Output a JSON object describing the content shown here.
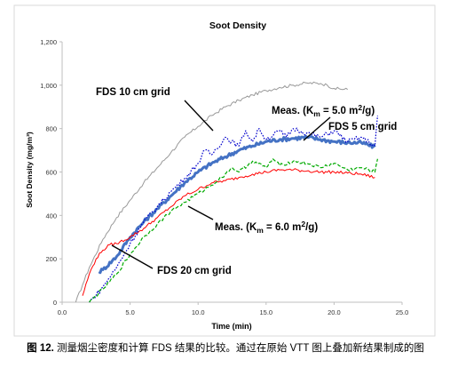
{
  "chart_data": {
    "type": "line",
    "title": "Soot Density",
    "xlabel": "Time (min)",
    "ylabel": "Soot Density (mg/m³)",
    "xlim": [
      0,
      25
    ],
    "ylim": [
      0,
      1200
    ],
    "x_ticks": [
      0,
      5,
      10,
      15,
      20,
      25
    ],
    "x_tick_labels": [
      "0.0",
      "5.0",
      "10.0",
      "15.0",
      "20.0",
      "25.0"
    ],
    "y_ticks": [
      0,
      200,
      400,
      600,
      800,
      1000,
      1200
    ],
    "y_tick_labels": [
      "0",
      "200",
      "400",
      "600",
      "800",
      "1,000",
      "1,200"
    ],
    "grid": false,
    "series": [
      {
        "name": "FDS 10 cm grid",
        "color": "#999999",
        "style": "solid-thin-noisy",
        "x": [
          1.0,
          1.5,
          2.0,
          3.0,
          4.0,
          5.0,
          6.0,
          7.0,
          8.0,
          9.0,
          10.0,
          11.0,
          12.0,
          13.0,
          14.0,
          15.0,
          16.0,
          17.0,
          18.0,
          19.0,
          19.5,
          20.0,
          21.0
        ],
        "y": [
          0,
          80,
          160,
          290,
          390,
          470,
          550,
          620,
          690,
          760,
          810,
          860,
          900,
          930,
          955,
          975,
          990,
          1000,
          1010,
          1008,
          1000,
          985,
          980
        ]
      },
      {
        "name": "FDS 5 cm grid",
        "color": "#4472c4",
        "style": "solid-thick",
        "x": [
          2.7,
          3.0,
          4.0,
          5.0,
          6.0,
          7.0,
          8.0,
          9.0,
          10.0,
          11.0,
          12.0,
          13.0,
          14.0,
          15.0,
          16.0,
          17.0,
          18.0,
          19.0,
          20.0,
          21.0,
          22.0,
          23.0
        ],
        "y": [
          140,
          150,
          210,
          300,
          370,
          430,
          490,
          550,
          600,
          640,
          670,
          700,
          720,
          740,
          750,
          755,
          760,
          750,
          740,
          735,
          735,
          715
        ]
      },
      {
        "name": "FDS 20 cm grid",
        "color": "#ff0000",
        "style": "solid-thin-noisy",
        "x": [
          1.5,
          2.0,
          2.5,
          3.0,
          3.5,
          4.0,
          5.0,
          6.0,
          7.0,
          8.0,
          9.0,
          10.0,
          11.0,
          12.0,
          13.0,
          14.0,
          15.0,
          16.0,
          17.0,
          18.0,
          19.0,
          20.0,
          21.0,
          22.0,
          23.0
        ],
        "y": [
          30,
          130,
          200,
          240,
          265,
          270,
          300,
          340,
          390,
          440,
          490,
          520,
          550,
          560,
          575,
          590,
          600,
          610,
          610,
          605,
          600,
          600,
          595,
          590,
          575
        ]
      },
      {
        "name": "Meas. (Km = 5.0 m²/g)",
        "color": "#0000cc",
        "style": "dotted",
        "x": [
          2.0,
          3.0,
          4.0,
          5.0,
          6.0,
          7.0,
          8.0,
          9.0,
          10.0,
          10.5,
          11.0,
          12.0,
          13.0,
          13.5,
          14.0,
          14.5,
          15.0,
          16.0,
          16.5,
          17.0,
          18.0,
          19.0,
          20.0,
          21.0,
          22.0,
          23.0,
          23.2
        ],
        "y": [
          0,
          70,
          160,
          270,
          370,
          440,
          510,
          570,
          640,
          700,
          680,
          760,
          720,
          790,
          740,
          800,
          750,
          790,
          760,
          800,
          780,
          760,
          790,
          740,
          760,
          720,
          860
        ]
      },
      {
        "name": "Meas. (Km = 6.0 m²/g)",
        "color": "#00aa00",
        "style": "dashed",
        "x": [
          2.0,
          3.0,
          4.0,
          5.0,
          6.0,
          7.0,
          8.0,
          9.0,
          10.0,
          11.0,
          12.0,
          12.5,
          13.0,
          14.0,
          15.0,
          15.5,
          16.0,
          17.0,
          18.0,
          19.0,
          20.0,
          21.0,
          22.0,
          23.0,
          23.2
        ],
        "y": [
          0,
          60,
          130,
          220,
          300,
          360,
          420,
          460,
          500,
          540,
          590,
          620,
          600,
          650,
          620,
          660,
          630,
          650,
          640,
          620,
          640,
          610,
          620,
          600,
          660
        ]
      }
    ],
    "annotations": [
      {
        "text": "FDS 10 cm grid",
        "series": 0
      },
      {
        "text": "Meas. (K",
        "sub": "m",
        "text2": " = 5.0 m",
        "sup": "2",
        "text3": "/g)",
        "series": 3
      },
      {
        "text": "FDS 5 cm grid",
        "series": 1
      },
      {
        "text": "Meas. (K",
        "sub": "m",
        "text2": " = 6.0 m",
        "sup": "2",
        "text3": "/g)",
        "series": 4
      },
      {
        "text": "FDS 20 cm grid",
        "series": 2
      }
    ]
  },
  "caption": {
    "prefix": "图 12.",
    "text": " 测量烟尘密度和计算 FDS 结果的比较。通过在原始 VTT 图上叠加新结果制成的图"
  }
}
